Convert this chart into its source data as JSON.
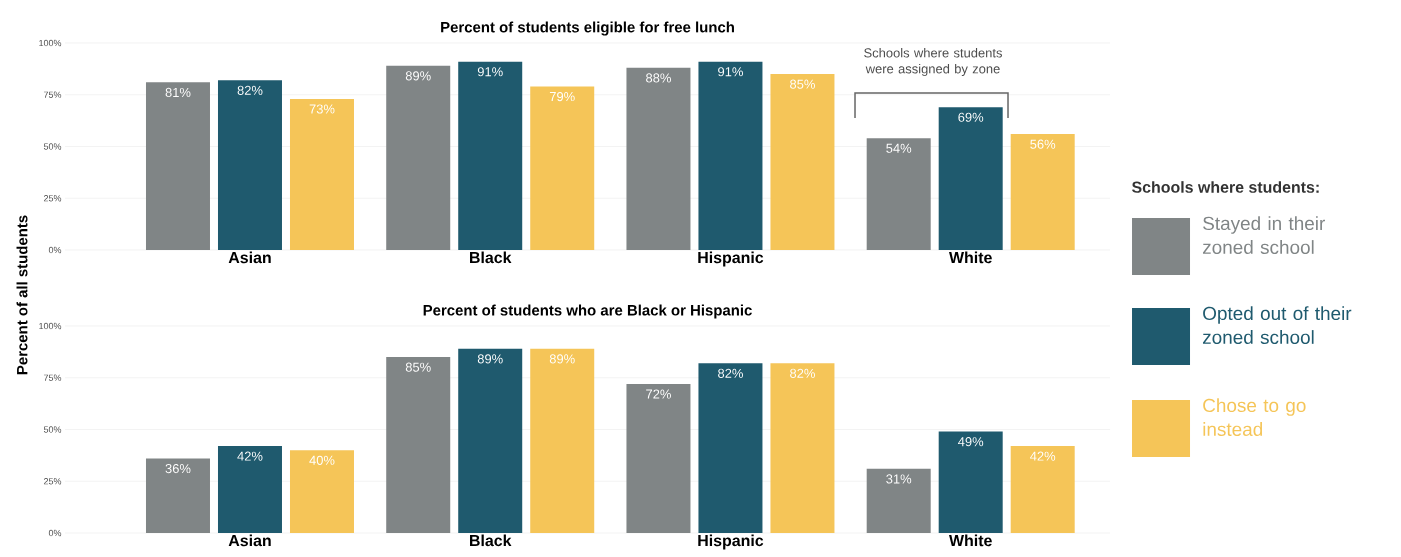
{
  "chart_data": [
    {
      "type": "bar",
      "title": "Percent of students eligible for free lunch",
      "ylabel": "Percent of all students",
      "legend_title": "Schools where students:",
      "legend": "right",
      "grid": "y",
      "categories": [
        "Asian",
        "Black",
        "Hispanic",
        "White"
      ],
      "ylim": [
        0,
        100
      ],
      "yticks": [
        {
          "value": 0,
          "label": "0%"
        },
        {
          "value": 25,
          "label": "25%"
        },
        {
          "value": 50,
          "label": "50%"
        },
        {
          "value": 75,
          "label": "75%"
        },
        {
          "value": 100,
          "label": "100%"
        }
      ],
      "series": [
        {
          "name": "Stayed in their zoned school",
          "color": "#808586",
          "values": [
            81,
            89,
            88,
            54
          ],
          "value_labels": [
            "81%",
            "89%",
            "88%",
            "54%"
          ]
        },
        {
          "name": "Opted out of their zoned school",
          "color": "#1f5a6e",
          "values": [
            82,
            91,
            91,
            69
          ],
          "value_labels": [
            "82%",
            "91%",
            "91%",
            "69%"
          ]
        },
        {
          "name": "Chose to go instead",
          "color": "#f5c558",
          "values": [
            73,
            79,
            85,
            56
          ],
          "value_labels": [
            "73%",
            "79%",
            "85%",
            "56%"
          ]
        }
      ],
      "annotations": [
        "Schools where students were assigned by zone"
      ]
    },
    {
      "type": "bar",
      "title": "Percent of students who are Black or Hispanic",
      "grid": "y",
      "categories": [
        "Asian",
        "Black",
        "Hispanic",
        "White"
      ],
      "ylim": [
        0,
        100
      ],
      "yticks": [
        {
          "value": 0,
          "label": "0%"
        },
        {
          "value": 25,
          "label": "25%"
        },
        {
          "value": 50,
          "label": "50%"
        },
        {
          "value": 75,
          "label": "75%"
        },
        {
          "value": 100,
          "label": "100%"
        }
      ],
      "series": [
        {
          "color": "#808586",
          "values": [
            36,
            85,
            72,
            31
          ],
          "value_labels": [
            "36%",
            "85%",
            "72%",
            "31%"
          ]
        },
        {
          "color": "#1f5a6e",
          "values": [
            42,
            89,
            82,
            49
          ],
          "value_labels": [
            "42%",
            "89%",
            "82%",
            "49%"
          ]
        },
        {
          "color": "#f5c558",
          "values": [
            40,
            89,
            82,
            42
          ],
          "value_labels": [
            "40%",
            "89%",
            "82%",
            "42%"
          ]
        }
      ]
    }
  ]
}
